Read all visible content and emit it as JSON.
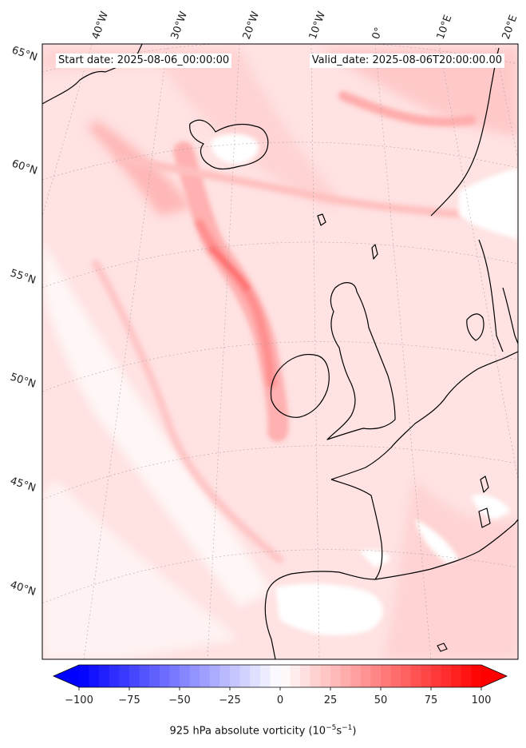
{
  "header": {
    "start_date": "Start date: 2025-08-06_00:00:00",
    "valid_date": "Valid_date: 2025-08-06T20:00:00.00"
  },
  "map": {
    "projection": "lambert-conformal",
    "extent": "North Atlantic and Western Europe",
    "lon_labels": [
      "40°W",
      "30°W",
      "20°W",
      "10°W",
      "0°",
      "10°E",
      "20°E"
    ],
    "lat_labels": [
      "65°N",
      "60°N",
      "55°N",
      "50°N",
      "45°N",
      "40°N"
    ],
    "field": "925 hPa absolute vorticity, filled contours",
    "coastline_color": "#000000",
    "gridline_color": "#999999"
  },
  "colorbar": {
    "label": "925 hPa absolute vorticity (10",
    "label_exp1": "−5",
    "label_mid": "s",
    "label_exp2": "−1",
    "label_end": ")",
    "ticks": [
      "−100",
      "−75",
      "−50",
      "−25",
      "0",
      "25",
      "50",
      "75",
      "100"
    ],
    "min": -100,
    "max": 100,
    "extend": "both",
    "colormap": "bwr",
    "colors": {
      "negative": "#0000ff",
      "zero": "#ffffff",
      "positive": "#ff0000"
    }
  }
}
